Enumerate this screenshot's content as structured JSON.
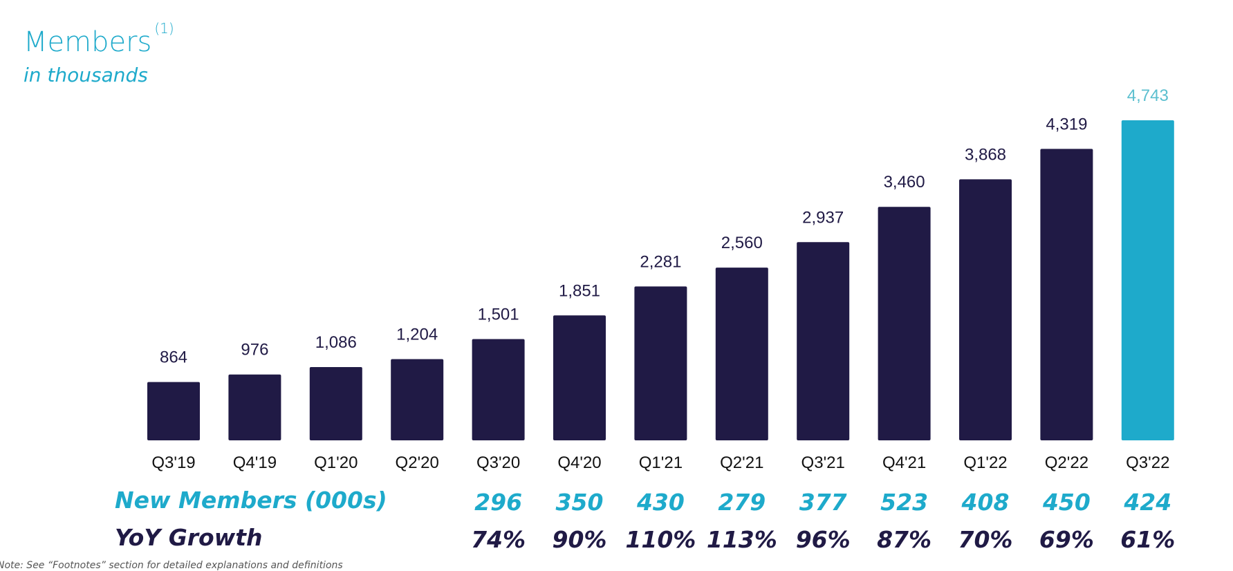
{
  "chart_data": {
    "type": "bar",
    "title": "Members",
    "title_footnote": "(1)",
    "subtitle": "in thousands",
    "categories": [
      "Q3'19",
      "Q4'19",
      "Q1'20",
      "Q2'20",
      "Q3'20",
      "Q4'20",
      "Q1'21",
      "Q2'21",
      "Q3'21",
      "Q4'21",
      "Q1'22",
      "Q2'22",
      "Q3'22"
    ],
    "values": [
      864,
      976,
      1086,
      1204,
      1501,
      1851,
      2281,
      2560,
      2937,
      3460,
      3868,
      4319,
      4743
    ],
    "value_labels": [
      "864",
      "976",
      "1,086",
      "1,204",
      "1,501",
      "1,851",
      "2,281",
      "2,560",
      "2,937",
      "3,460",
      "3,868",
      "4,319",
      "4,743"
    ],
    "highlight_index": 12,
    "grid": false,
    "colors": {
      "bar": "#201a45",
      "highlight": "#1eaacb",
      "highlight_label": "#5bbfcf",
      "label": "#201a45"
    },
    "rows": [
      {
        "label": "New Members (000s)",
        "color": "#1eaacb",
        "start_index": 4,
        "values": [
          "296",
          "350",
          "430",
          "279",
          "377",
          "523",
          "408",
          "450",
          "424"
        ]
      },
      {
        "label": "YoY Growth",
        "color": "#201a45",
        "start_index": 4,
        "values": [
          "74%",
          "90%",
          "110%",
          "113%",
          "96%",
          "87%",
          "70%",
          "69%",
          "61%"
        ]
      }
    ]
  },
  "note": "Note: See “Footnotes” section for detailed explanations and definitions"
}
